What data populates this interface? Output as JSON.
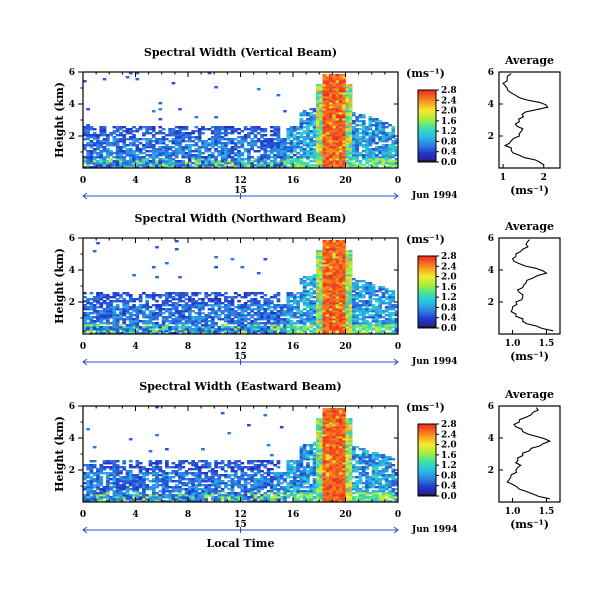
{
  "chart_data": [
    {
      "type": "heatmap",
      "title": "Spectral Width (Vertical Beam)",
      "ylabel": "Height (km)",
      "xlabel": "",
      "x_ticks": [
        "0",
        "4",
        "8",
        "12",
        "16",
        "20",
        "0"
      ],
      "y_ticks": [
        "2",
        "4",
        "6"
      ],
      "date_label": "15",
      "date_suffix": "Jun 1994",
      "xlim": [
        0,
        24
      ],
      "ylim": [
        0,
        6
      ],
      "colorbar": {
        "unit": "(ms⁻¹)",
        "ticks": [
          "0.0",
          "0.4",
          "0.8",
          "1.2",
          "1.6",
          "2.0",
          "2.4",
          "2.8"
        ],
        "range": [
          0,
          2.8
        ]
      },
      "average_profile": {
        "title": "Average",
        "xlabel": "(ms⁻¹)",
        "x_ticks": [
          "1",
          "2"
        ],
        "xlim": [
          0.9,
          2.4
        ],
        "y_ticks": [
          "2",
          "4",
          "6"
        ],
        "heights": [
          0.2,
          0.5,
          0.8,
          1.1,
          1.4,
          1.7,
          2.0,
          2.3,
          2.6,
          2.9,
          3.2,
          3.5,
          3.8,
          4.1,
          4.4,
          4.7,
          5.0,
          5.3,
          5.6,
          5.9
        ],
        "values": [
          2.0,
          1.8,
          1.4,
          1.2,
          1.05,
          1.2,
          1.4,
          1.45,
          1.35,
          1.4,
          1.5,
          1.55,
          2.1,
          1.9,
          1.4,
          1.2,
          1.1,
          1.0,
          1.1,
          1.2
        ]
      }
    },
    {
      "type": "heatmap",
      "title": "Spectral Width (Northward Beam)",
      "ylabel": "Height (km)",
      "xlabel": "",
      "x_ticks": [
        "0",
        "4",
        "8",
        "12",
        "16",
        "20",
        "0"
      ],
      "y_ticks": [
        "2",
        "4",
        "6"
      ],
      "date_label": "15",
      "date_suffix": "Jun 1994",
      "xlim": [
        0,
        24
      ],
      "ylim": [
        0,
        6
      ],
      "colorbar": {
        "unit": "(ms⁻¹)",
        "ticks": [
          "0.0",
          "0.4",
          "0.8",
          "1.2",
          "1.6",
          "2.0",
          "2.4",
          "2.8"
        ],
        "range": [
          0,
          2.8
        ]
      },
      "average_profile": {
        "title": "Average",
        "xlabel": "(ms⁻¹)",
        "x_ticks": [
          "1.0",
          "1.5"
        ],
        "xlim": [
          0.8,
          1.7
        ],
        "y_ticks": [
          "2",
          "4",
          "6"
        ],
        "heights": [
          0.2,
          0.5,
          0.8,
          1.1,
          1.4,
          1.7,
          2.0,
          2.3,
          2.6,
          2.9,
          3.2,
          3.5,
          3.8,
          4.1,
          4.4,
          4.7,
          5.0,
          5.3,
          5.6,
          5.9
        ],
        "values": [
          1.6,
          1.35,
          1.15,
          1.05,
          0.98,
          1.0,
          1.05,
          1.15,
          1.1,
          1.15,
          1.2,
          1.3,
          1.5,
          1.35,
          1.1,
          1.0,
          1.05,
          1.15,
          1.2,
          1.25
        ]
      }
    },
    {
      "type": "heatmap",
      "title": "Spectral Width (Eastward Beam)",
      "ylabel": "Height (km)",
      "xlabel": "Local Time",
      "x_ticks": [
        "0",
        "4",
        "8",
        "12",
        "16",
        "20",
        "0"
      ],
      "y_ticks": [
        "2",
        "4",
        "6"
      ],
      "date_label": "15",
      "date_suffix": "Jun 1994",
      "xlim": [
        0,
        24
      ],
      "ylim": [
        0,
        6
      ],
      "colorbar": {
        "unit": "(ms⁻¹)",
        "ticks": [
          "0.0",
          "0.4",
          "0.8",
          "1.2",
          "1.6",
          "2.0",
          "2.4",
          "2.8"
        ],
        "range": [
          0,
          2.8
        ]
      },
      "average_profile": {
        "title": "Average",
        "xlabel": "(ms⁻¹)",
        "x_ticks": [
          "1.0",
          "1.5"
        ],
        "xlim": [
          0.8,
          1.7
        ],
        "y_ticks": [
          "2",
          "4",
          "6"
        ],
        "heights": [
          0.2,
          0.5,
          0.8,
          1.1,
          1.4,
          1.7,
          2.0,
          2.3,
          2.6,
          2.9,
          3.2,
          3.5,
          3.8,
          4.1,
          4.4,
          4.7,
          5.0,
          5.3,
          5.6,
          5.9
        ],
        "values": [
          1.55,
          1.3,
          1.1,
          1.0,
          0.95,
          0.98,
          1.05,
          1.12,
          1.08,
          1.15,
          1.25,
          1.4,
          1.55,
          1.35,
          1.15,
          1.05,
          1.1,
          1.2,
          1.3,
          1.35
        ]
      }
    }
  ]
}
